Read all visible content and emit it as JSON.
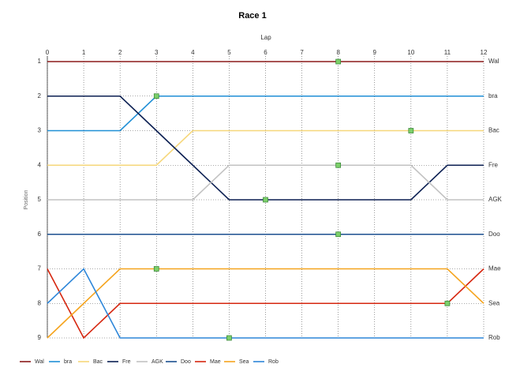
{
  "chart_data": {
    "type": "line",
    "title": "Race 1",
    "x_label": "Lap",
    "y_label": "Position",
    "x": [
      0,
      1,
      2,
      3,
      4,
      5,
      6,
      7,
      8,
      9,
      10,
      11,
      12
    ],
    "xlim": [
      0,
      12
    ],
    "xticks": [
      0,
      1,
      2,
      3,
      4,
      5,
      6,
      7,
      8,
      9,
      10,
      11,
      12
    ],
    "ylim": [
      9,
      1
    ],
    "yticks": [
      1,
      2,
      3,
      4,
      5,
      6,
      7,
      8,
      9
    ],
    "grid": true,
    "marker_color": "#7ccf6a",
    "series": [
      {
        "name": "Wal",
        "color": "#8b1a1a",
        "values": [
          1,
          1,
          1,
          1,
          1,
          1,
          1,
          1,
          1,
          1,
          1,
          1,
          1
        ],
        "marker_x": 8
      },
      {
        "name": "bra",
        "color": "#1f8fd6",
        "values": [
          3,
          3,
          3,
          2,
          2,
          2,
          2,
          2,
          2,
          2,
          2,
          2,
          2
        ],
        "marker_x": 3
      },
      {
        "name": "Bac",
        "color": "#f6d77a",
        "values": [
          4,
          4,
          4,
          4,
          3,
          3,
          3,
          3,
          3,
          3,
          3,
          3,
          3
        ],
        "marker_x": 10
      },
      {
        "name": "Fre",
        "color": "#0b1f52",
        "values": [
          2,
          2,
          2,
          3,
          4,
          5,
          5,
          5,
          5,
          5,
          5,
          4,
          4
        ],
        "marker_x": 6
      },
      {
        "name": "AGK",
        "color": "#c2c2c2",
        "values": [
          5,
          5,
          5,
          5,
          5,
          4,
          4,
          4,
          4,
          4,
          4,
          5,
          5
        ],
        "marker_x": 8
      },
      {
        "name": "Doo",
        "color": "#1b4f8f",
        "values": [
          6,
          6,
          6,
          6,
          6,
          6,
          6,
          6,
          6,
          6,
          6,
          6,
          6
        ],
        "marker_x": 8
      },
      {
        "name": "Mae",
        "color": "#d6260f",
        "values": [
          7,
          9,
          8,
          8,
          8,
          8,
          8,
          8,
          8,
          8,
          8,
          8,
          7
        ],
        "marker_x": 11
      },
      {
        "name": "Sea",
        "color": "#f5a41e",
        "values": [
          9,
          8,
          7,
          7,
          7,
          7,
          7,
          7,
          7,
          7,
          7,
          7,
          8
        ],
        "marker_x": 3
      },
      {
        "name": "Rob",
        "color": "#2d86d9",
        "values": [
          8,
          7,
          9,
          9,
          9,
          9,
          9,
          9,
          9,
          9,
          9,
          9,
          9
        ],
        "marker_x": 5
      }
    ]
  }
}
